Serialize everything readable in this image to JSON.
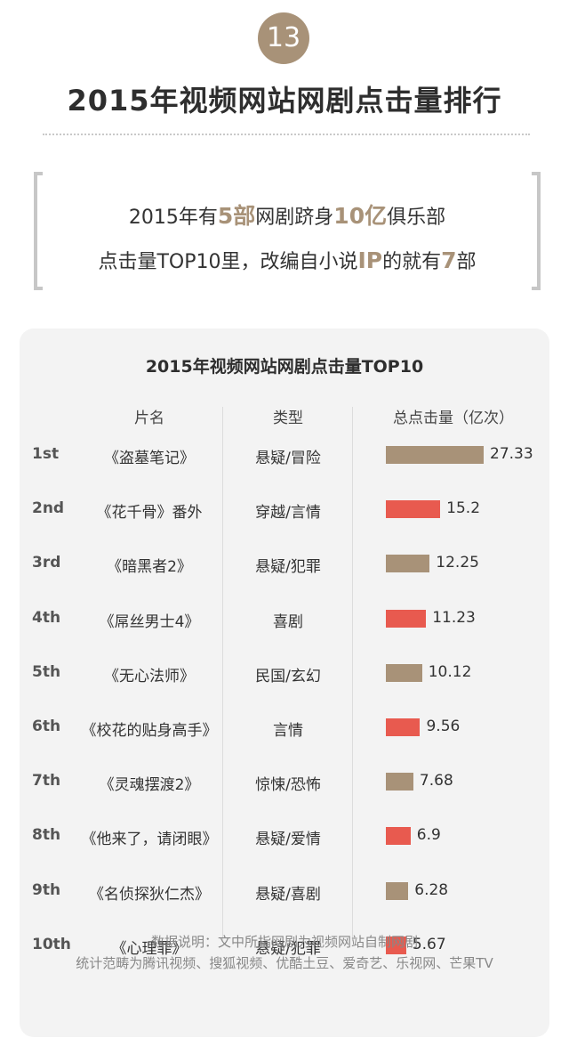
{
  "badge": "13",
  "title": "2015年视频网站网剧点击量排行",
  "summary": {
    "line1": [
      "2015年有",
      "5部",
      "网剧跻身",
      "10亿",
      "俱乐部"
    ],
    "line2": [
      "点击量TOP10里，改编自小说",
      "IP",
      "的就有",
      "7",
      "部"
    ]
  },
  "colors": {
    "accent": "#a89278",
    "red": "#e85a4f"
  },
  "chart_data": {
    "type": "bar",
    "title": "2015年视频网站网剧点击量TOP10",
    "columns": [
      "片名",
      "类型",
      "总点击量（亿次）"
    ],
    "ranks": [
      "1st",
      "2nd",
      "3rd",
      "4th",
      "5th",
      "6th",
      "7th",
      "8th",
      "9th",
      "10th"
    ],
    "categories": [
      "《盗墓笔记》",
      "《花千骨》番外",
      "《暗黑者2》",
      "《屌丝男士4》",
      "《无心法师》",
      "《校花的贴身高手》",
      "《灵魂摆渡2》",
      "《他来了，请闭眼》",
      "《名侦探狄仁杰》",
      "《心理罪》"
    ],
    "genres": [
      "悬疑/冒险",
      "穿越/言情",
      "悬疑/犯罪",
      "喜剧",
      "民国/玄幻",
      "言情",
      "惊悚/恐怖",
      "悬疑/爱情",
      "悬疑/喜剧",
      "悬疑/犯罪"
    ],
    "values": [
      27.33,
      15.2,
      12.25,
      11.23,
      10.12,
      9.56,
      7.68,
      6.9,
      6.28,
      5.67
    ],
    "value_labels": [
      "27.33",
      "15.2",
      "12.25",
      "11.23",
      "10.12",
      "9.56",
      "7.68",
      "6.9",
      "6.28",
      "5.67"
    ],
    "bar_colors": [
      "#a89278",
      "#e85a4f",
      "#a89278",
      "#e85a4f",
      "#a89278",
      "#e85a4f",
      "#a89278",
      "#e85a4f",
      "#a89278",
      "#e85a4f"
    ],
    "xlim": [
      0,
      27.33
    ]
  },
  "notes": [
    "数据说明：文中所指网剧为视频网站自制网剧",
    "统计范畴为腾讯视频、搜狐视频、优酷土豆、爱奇艺、乐视网、芒果TV"
  ]
}
